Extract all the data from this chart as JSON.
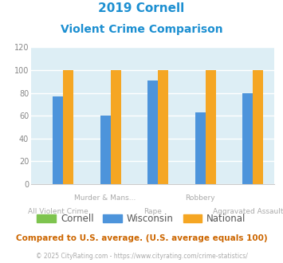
{
  "title_line1": "2019 Cornell",
  "title_line2": "Violent Crime Comparison",
  "title_color": "#1c8fd1",
  "categories": [
    "All Violent Crime",
    "Murder & Mans...",
    "Rape",
    "Robbery",
    "Aggravated Assault"
  ],
  "top_labels": {
    "1": "Murder & Mans...",
    "3": "Robbery"
  },
  "bottom_labels": {
    "0": "All Violent Crime",
    "2": "Rape",
    "4": "Aggravated Assault"
  },
  "series": [
    {
      "name": "Cornell",
      "color": "#7ec44f",
      "values": [
        0,
        0,
        0,
        0,
        0
      ]
    },
    {
      "name": "Wisconsin",
      "color": "#4d94db",
      "values": [
        77,
        60,
        91,
        63,
        80
      ]
    },
    {
      "name": "National",
      "color": "#f5a623",
      "values": [
        100,
        100,
        100,
        100,
        100
      ]
    }
  ],
  "ylim": [
    0,
    120
  ],
  "yticks": [
    0,
    20,
    40,
    60,
    80,
    100,
    120
  ],
  "plot_bg_color": "#ddeef5",
  "fig_bg_color": "#ffffff",
  "grid_color": "#ffffff",
  "label_color": "#aaaaaa",
  "footer_text": "Compared to U.S. average. (U.S. average equals 100)",
  "footer_color": "#cc6600",
  "copyright_text": "© 2025 CityRating.com - https://www.cityrating.com/crime-statistics/",
  "copyright_color": "#aaaaaa",
  "bar_width": 0.22
}
